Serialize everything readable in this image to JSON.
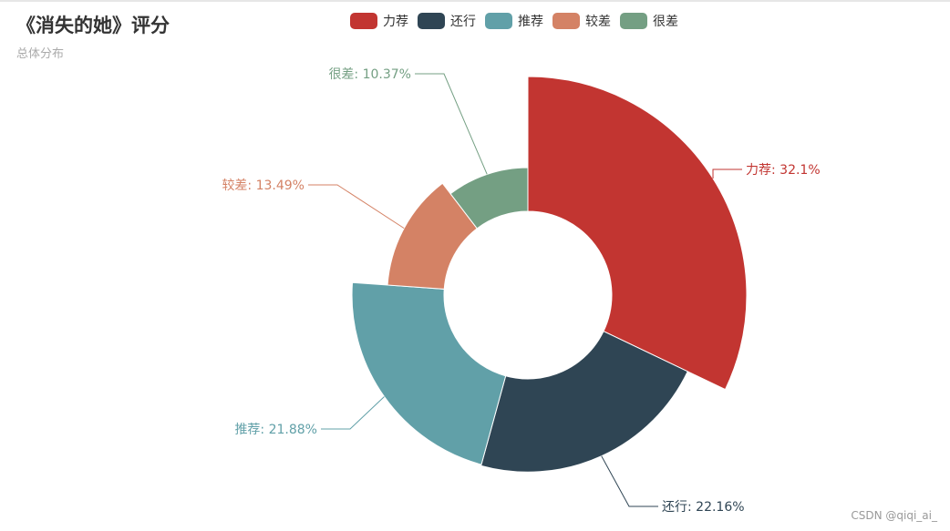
{
  "title": "《消失的她》评分",
  "subtitle": "总体分布",
  "watermark": "CSDN @qiqi_ai_",
  "legend": [
    {
      "label": "力荐",
      "color": "#c23531"
    },
    {
      "label": "还行",
      "color": "#2f4554"
    },
    {
      "label": "推荐",
      "color": "#61a0a8"
    },
    {
      "label": "较差",
      "color": "#d48265"
    },
    {
      "label": "很差",
      "color": "#749f83"
    }
  ],
  "chart_data": {
    "type": "pie",
    "rose_type": "radius",
    "title": "《消失的她》评分",
    "subtitle": "总体分布",
    "legend_position": "top-center",
    "series": [
      {
        "name": "力荐",
        "value": 32.1,
        "label": "力荐: 32.1%",
        "color": "#c23531"
      },
      {
        "name": "还行",
        "value": 22.16,
        "label": "还行: 22.16%",
        "color": "#2f4554"
      },
      {
        "name": "推荐",
        "value": 21.88,
        "label": "推荐: 21.88%",
        "color": "#61a0a8"
      },
      {
        "name": "较差",
        "value": 13.49,
        "label": "较差: 13.49%",
        "color": "#d48265"
      },
      {
        "name": "很差",
        "value": 10.37,
        "label": "很差: 10.37%",
        "color": "#749f83"
      }
    ]
  }
}
